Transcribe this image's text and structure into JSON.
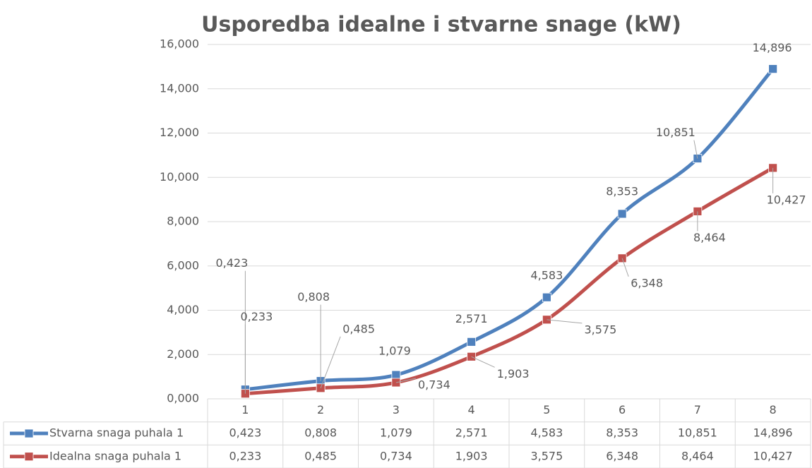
{
  "chart_data": {
    "type": "line",
    "title": "Usporedba idealne i stvarne snage (kW)",
    "categories": [
      "1",
      "2",
      "3",
      "4",
      "5",
      "6",
      "7",
      "8"
    ],
    "series": [
      {
        "name": "Stvarna snaga puhala 1",
        "color": "#4f81bd",
        "values": [
          0.423,
          0.808,
          1.079,
          2.571,
          4.583,
          8.353,
          10.851,
          14.896
        ],
        "value_labels": [
          "0,423",
          "0,808",
          "1,079",
          "2,571",
          "4,583",
          "8,353",
          "10,851",
          "14,896"
        ]
      },
      {
        "name": "Idealna snaga puhala 1",
        "color": "#c0504d",
        "values": [
          0.233,
          0.485,
          0.734,
          1.903,
          3.575,
          6.348,
          8.464,
          10.427
        ],
        "value_labels": [
          "0,233",
          "0,485",
          "0,734",
          "1,903",
          "3,575",
          "6,348",
          "8,464",
          "10,427"
        ]
      }
    ],
    "ylim": [
      0,
      16
    ],
    "yticks": [
      {
        "value": 0,
        "label": "0,000"
      },
      {
        "value": 2,
        "label": "2,000"
      },
      {
        "value": 4,
        "label": "4,000"
      },
      {
        "value": 6,
        "label": "6,000"
      },
      {
        "value": 8,
        "label": "8,000"
      },
      {
        "value": 10,
        "label": "10,000"
      },
      {
        "value": 12,
        "label": "12,000"
      },
      {
        "value": 14,
        "label": "14,000"
      },
      {
        "value": 16,
        "label": "16,000"
      }
    ],
    "grid": true,
    "data_table": true
  }
}
